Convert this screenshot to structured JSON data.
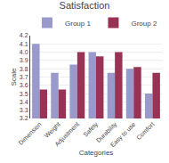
{
  "chart_data": {
    "type": "bar",
    "title": "Satisfaction",
    "xlabel": "Categories",
    "ylabel": "Scale",
    "categories": [
      "Dimension",
      "Weight",
      "Adjustment",
      "Safety",
      "Durability",
      "Easy to use",
      "Comfort"
    ],
    "series": [
      {
        "name": "Group 1",
        "color": "#9999cc",
        "values": [
          4.1,
          3.75,
          3.85,
          4.0,
          3.75,
          3.8,
          3.5
        ]
      },
      {
        "name": "Group 2",
        "color": "#993355",
        "values": [
          3.55,
          3.55,
          4.0,
          3.95,
          4.0,
          3.82,
          3.75
        ]
      }
    ],
    "ylim": [
      3.2,
      4.2
    ],
    "yticks": [
      3.2,
      3.3,
      3.4,
      3.5,
      3.6,
      3.7,
      3.8,
      3.9,
      {
        "value": 4.0,
        "label": "4.0"
      },
      4.1,
      4.2
    ],
    "grid": true,
    "legend": "upper right"
  }
}
